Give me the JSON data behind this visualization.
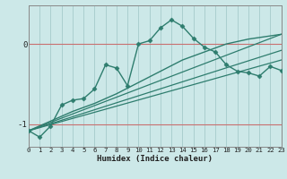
{
  "xlabel": "Humidex (Indice chaleur)",
  "bg_color": "#cce8e8",
  "line_color": "#2e7d6e",
  "grid_color": "#aacfcf",
  "red_line_color": "#c87070",
  "x_ticks": [
    0,
    1,
    2,
    3,
    4,
    5,
    6,
    7,
    8,
    9,
    10,
    11,
    12,
    13,
    14,
    15,
    16,
    17,
    18,
    19,
    20,
    21,
    22,
    23
  ],
  "y_ticks": [
    -1,
    0
  ],
  "xlim": [
    0,
    23
  ],
  "ylim": [
    -1.28,
    0.48
  ],
  "series1_x": [
    0,
    1,
    2,
    3,
    4,
    5,
    6,
    7,
    8,
    9,
    10,
    11,
    12,
    13,
    14,
    15,
    16,
    17,
    18,
    19,
    20,
    21,
    22,
    23
  ],
  "series1_y": [
    -1.08,
    -1.16,
    -1.02,
    -0.76,
    -0.7,
    -0.68,
    -0.56,
    -0.26,
    -0.3,
    -0.52,
    0.0,
    0.04,
    0.2,
    0.3,
    0.22,
    0.07,
    -0.04,
    -0.1,
    -0.26,
    -0.34,
    -0.36,
    -0.4,
    -0.28,
    -0.33
  ],
  "series2_x": [
    0,
    2,
    4,
    6,
    8,
    10,
    12,
    14,
    16,
    18,
    20,
    22,
    23
  ],
  "series2_y": [
    -1.08,
    -0.96,
    -0.84,
    -0.74,
    -0.62,
    -0.48,
    -0.34,
    -0.2,
    -0.1,
    -0.0,
    0.06,
    0.1,
    0.12
  ],
  "line1_x": [
    0,
    23
  ],
  "line1_y": [
    -1.08,
    -0.2
  ],
  "line2_x": [
    0,
    23
  ],
  "line2_y": [
    -1.08,
    0.12
  ],
  "line3_x": [
    0,
    23
  ],
  "line3_y": [
    -1.08,
    -0.08
  ]
}
